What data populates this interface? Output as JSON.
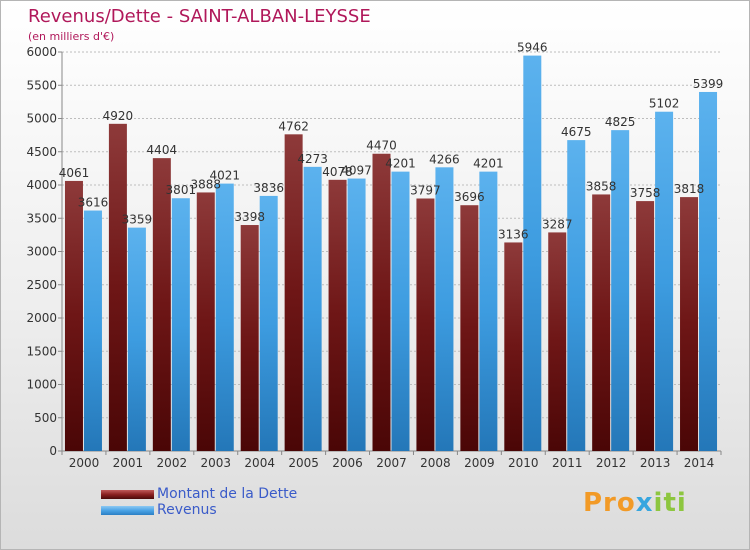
{
  "chart_data": {
    "type": "bar",
    "title": "Revenus/Dette - SAINT-ALBAN-LEYSSE",
    "subtitle": "(en milliers d'€)",
    "categories": [
      "2000",
      "2001",
      "2002",
      "2003",
      "2004",
      "2005",
      "2006",
      "2007",
      "2008",
      "2009",
      "2010",
      "2011",
      "2012",
      "2013",
      "2014"
    ],
    "series": [
      {
        "name": "Montant de la Dette",
        "color": "#7a1a1a",
        "values": [
          4061,
          4920,
          4404,
          3888,
          3398,
          4762,
          4078,
          4470,
          3797,
          3696,
          3136,
          3287,
          3858,
          3758,
          3818
        ]
      },
      {
        "name": "Revenus",
        "color": "#3d9ce0",
        "values": [
          3616,
          3359,
          3801,
          4021,
          3836,
          4273,
          4097,
          4201,
          4266,
          4201,
          5946,
          4675,
          4825,
          5102,
          5399
        ]
      }
    ],
    "value_labels": {
      "dette": [
        "4061",
        "4920",
        "4404",
        "3888",
        "3398",
        "4762",
        "4078",
        "4470",
        "3797",
        "3696",
        "3136",
        "3287",
        "3858",
        "3758",
        "3818"
      ],
      "revenus": [
        "3616",
        "3359",
        "3801",
        "4021",
        "3836",
        "4273",
        "4097",
        "4201",
        "4266",
        "4201",
        "5946",
        "4675",
        "4825",
        "5102",
        "5399"
      ]
    },
    "yticks": [
      0,
      500,
      1000,
      1500,
      2000,
      2500,
      3000,
      3500,
      4000,
      4500,
      5000,
      5500,
      6000
    ],
    "ylim": [
      0,
      6000
    ],
    "grid": true,
    "legend_position": "bottom-left"
  },
  "brand": {
    "part1": "Pro",
    "part2": "x",
    "part3": "iti"
  }
}
